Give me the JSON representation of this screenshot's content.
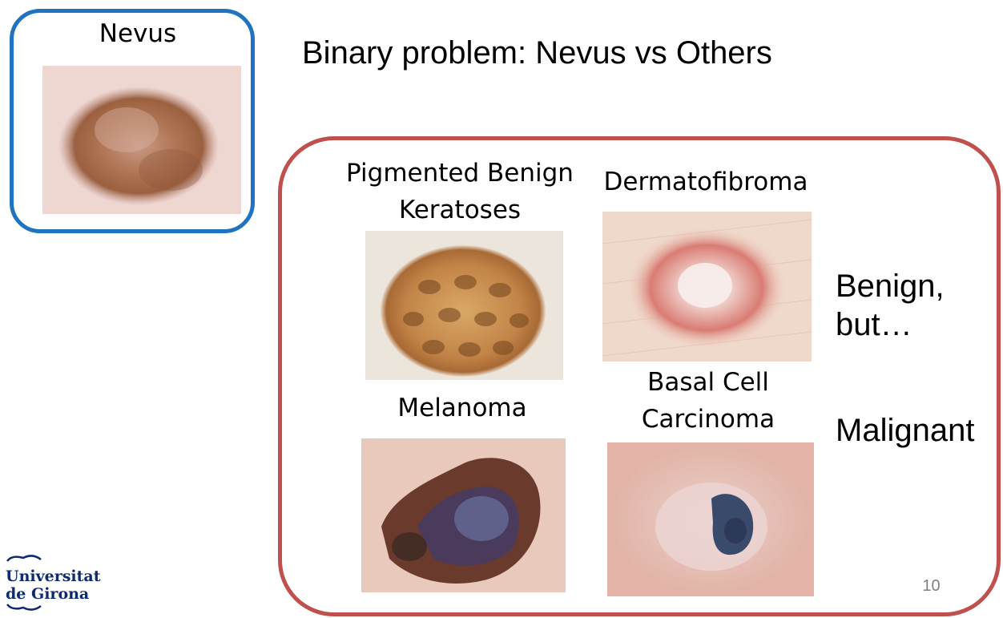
{
  "slide": {
    "title": "Binary problem: Nevus vs Others",
    "page_number": "10"
  },
  "nevus": {
    "label": "Nevus"
  },
  "others": {
    "pbk_line1": "Pigmented Benign",
    "pbk_line2": "Keratoses",
    "dermatofibroma": "Dermatofibroma",
    "melanoma": "Melanoma",
    "bcc_line1": "Basal Cell",
    "bcc_line2": "Carcinoma",
    "benign_line1": "Benign,",
    "benign_line2": "but…",
    "malignant": "Malignant"
  },
  "logo": {
    "line1": "Universitat",
    "line2": "de Girona"
  },
  "colors": {
    "nevus_border": "#1f73c1",
    "others_border": "#c0504d",
    "logo_blue": "#0d2b6e"
  }
}
